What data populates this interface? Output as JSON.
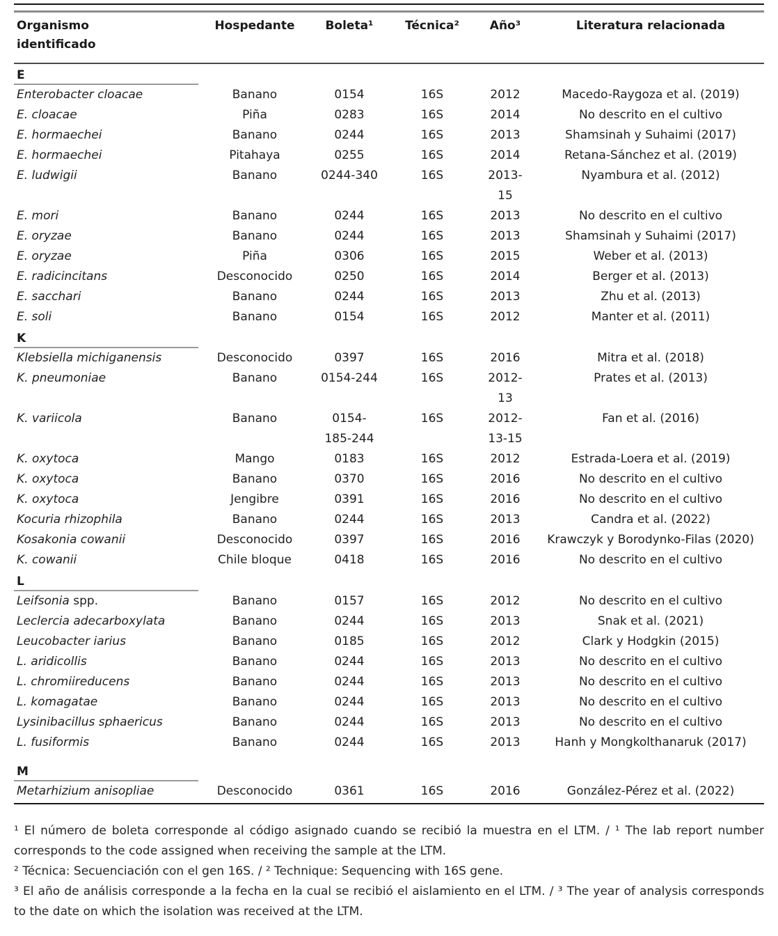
{
  "colors": {
    "text": "#1f1f1f",
    "top_rule_dark": "#141414",
    "top_rule_gray": "#8c8c8c",
    "header_rule": "#4a4a4a",
    "section_rule": "#9a9a9a",
    "bottom_rule": "#1a1a1a",
    "background": "#ffffff"
  },
  "table": {
    "columns": [
      "Organismo\nidentificado",
      "Hospedante",
      "Boleta¹",
      "Técnica²",
      "Año³",
      "Literatura relacionada"
    ],
    "sections": [
      {
        "letter": "E",
        "rows": [
          {
            "organism": "Enterobacter cloacae",
            "organism_suffix": "",
            "host": "Banano",
            "boleta": "0154",
            "tecnica": "16S",
            "ano": "2012",
            "literatura": "Macedo-Raygoza et al. (2019)"
          },
          {
            "organism": "E. cloacae",
            "organism_suffix": "",
            "host": "Piña",
            "boleta": "0283",
            "tecnica": "16S",
            "ano": "2014",
            "literatura": "No descrito en el cultivo"
          },
          {
            "organism": "E. hormaechei",
            "organism_suffix": "",
            "host": "Banano",
            "boleta": "0244",
            "tecnica": "16S",
            "ano": "2013",
            "literatura": "Shamsinah y Suhaimi (2017)"
          },
          {
            "organism": "E. hormaechei",
            "organism_suffix": "",
            "host": "Pitahaya",
            "boleta": "0255",
            "tecnica": "16S",
            "ano": "2014",
            "literatura": "Retana-Sánchez et al. (2019)"
          },
          {
            "organism": "E. ludwigii",
            "organism_suffix": "",
            "host": "Banano",
            "boleta": "0244-340",
            "tecnica": "16S",
            "ano": "2013-\n15",
            "literatura": "Nyambura et al. (2012)"
          },
          {
            "organism": "E. mori",
            "organism_suffix": "",
            "host": "Banano",
            "boleta": "0244",
            "tecnica": "16S",
            "ano": "2013",
            "literatura": "No descrito en el cultivo"
          },
          {
            "organism": "E. oryzae",
            "organism_suffix": "",
            "host": "Banano",
            "boleta": "0244",
            "tecnica": "16S",
            "ano": "2013",
            "literatura": "Shamsinah y Suhaimi (2017)"
          },
          {
            "organism": "E. oryzae",
            "organism_suffix": "",
            "host": "Piña",
            "boleta": "0306",
            "tecnica": "16S",
            "ano": "2015",
            "literatura": "Weber et al. (2013)"
          },
          {
            "organism": "E. radicincitans",
            "organism_suffix": "",
            "host": "Desconocido",
            "boleta": "0250",
            "tecnica": "16S",
            "ano": "2014",
            "literatura": "Berger et al. (2013)"
          },
          {
            "organism": "E. sacchari",
            "organism_suffix": "",
            "host": "Banano",
            "boleta": "0244",
            "tecnica": "16S",
            "ano": "2013",
            "literatura": "Zhu et al. (2013)"
          },
          {
            "organism": "E. soli",
            "organism_suffix": "",
            "host": "Banano",
            "boleta": "0154",
            "tecnica": "16S",
            "ano": "2012",
            "literatura": "Manter et al. (2011)"
          }
        ]
      },
      {
        "letter": "K",
        "rows": [
          {
            "organism": "Klebsiella michiganensis",
            "organism_suffix": "",
            "host": "Desconocido",
            "boleta": "0397",
            "tecnica": "16S",
            "ano": "2016",
            "literatura": "Mitra et al. (2018)"
          },
          {
            "organism": "K. pneumoniae",
            "organism_suffix": "",
            "host": "Banano",
            "boleta": "0154-244",
            "tecnica": "16S",
            "ano": "2012-\n13",
            "literatura": "Prates et al. (2013)"
          },
          {
            "organism": "K. variicola",
            "organism_suffix": "",
            "host": "Banano",
            "boleta": "0154-\n185-244",
            "tecnica": "16S",
            "ano": "2012-\n13-15",
            "literatura": "Fan et al. (2016)"
          },
          {
            "organism": "K. oxytoca",
            "organism_suffix": "",
            "host": "Mango",
            "boleta": "0183",
            "tecnica": "16S",
            "ano": "2012",
            "literatura": "Estrada-Loera et al. (2019)"
          },
          {
            "organism": "K. oxytoca",
            "organism_suffix": "",
            "host": "Banano",
            "boleta": "0370",
            "tecnica": "16S",
            "ano": "2016",
            "literatura": "No descrito en el cultivo"
          },
          {
            "organism": "K. oxytoca",
            "organism_suffix": "",
            "host": "Jengibre",
            "boleta": "0391",
            "tecnica": "16S",
            "ano": "2016",
            "literatura": "No descrito en el cultivo"
          },
          {
            "organism": "Kocuria rhizophila",
            "organism_suffix": "",
            "host": "Banano",
            "boleta": "0244",
            "tecnica": "16S",
            "ano": "2013",
            "literatura": "Candra et al. (2022)"
          },
          {
            "organism": "Kosakonia cowanii",
            "organism_suffix": "",
            "host": "Desconocido",
            "boleta": "0397",
            "tecnica": "16S",
            "ano": "2016",
            "literatura": "Krawczyk y Borodynko-Filas (2020)"
          },
          {
            "organism": "K. cowanii",
            "organism_suffix": "",
            "host": "Chile bloque",
            "boleta": "0418",
            "tecnica": "16S",
            "ano": "2016",
            "literatura": "No descrito en el cultivo"
          }
        ]
      },
      {
        "letter": "L",
        "rows": [
          {
            "organism": "Leifsonia",
            "organism_suffix": " spp.",
            "host": "Banano",
            "boleta": "0157",
            "tecnica": "16S",
            "ano": "2012",
            "literatura": "No descrito en el cultivo"
          },
          {
            "organism": "Leclercia adecarboxylata",
            "organism_suffix": "",
            "host": "Banano",
            "boleta": "0244",
            "tecnica": "16S",
            "ano": "2013",
            "literatura": "Snak et al. (2021)"
          },
          {
            "organism": "Leucobacter iarius",
            "organism_suffix": "",
            "host": "Banano",
            "boleta": "0185",
            "tecnica": "16S",
            "ano": "2012",
            "literatura": "Clark y Hodgkin (2015)"
          },
          {
            "organism": "L. aridicollis",
            "organism_suffix": "",
            "host": "Banano",
            "boleta": "0244",
            "tecnica": "16S",
            "ano": "2013",
            "literatura": "No descrito en el cultivo"
          },
          {
            "organism": "L. chromiireducens",
            "organism_suffix": "",
            "host": "Banano",
            "boleta": "0244",
            "tecnica": "16S",
            "ano": "2013",
            "literatura": "No descrito en el cultivo"
          },
          {
            "organism": "L. komagatae",
            "organism_suffix": "",
            "host": "Banano",
            "boleta": "0244",
            "tecnica": "16S",
            "ano": "2013",
            "literatura": "No descrito en el cultivo"
          },
          {
            "organism": "Lysinibacillus sphaericus",
            "organism_suffix": "",
            "host": "Banano",
            "boleta": "0244",
            "tecnica": "16S",
            "ano": "2013",
            "literatura": "No descrito en el cultivo"
          },
          {
            "organism": "L. fusiformis",
            "organism_suffix": "",
            "host": "Banano",
            "boleta": "0244",
            "tecnica": "16S",
            "ano": "2013",
            "literatura": "Hanh y Mongkolthanaruk (2017)"
          }
        ]
      },
      {
        "letter": "M",
        "rows": [
          {
            "organism": "Metarhizium anisopliae",
            "organism_suffix": "",
            "host": "Desconocido",
            "boleta": "0361",
            "tecnica": "16S",
            "ano": "2016",
            "literatura": "González-Pérez et al. (2022)"
          }
        ]
      }
    ]
  },
  "footnotes": [
    "¹ El número de boleta corresponde al código asignado cuando se recibió la muestra en el LTM. / ¹ The lab report number corresponds to the code assigned when receiving the sample at the LTM.",
    "² Técnica: Secuenciación con el gen 16S. / ² Technique: Sequencing with 16S gene.",
    "³ El año de análisis corresponde a la fecha en la cual se recibió el aislamiento en el LTM. / ³ The year of analysis corresponds to the date on which the isolation was received at the LTM."
  ]
}
